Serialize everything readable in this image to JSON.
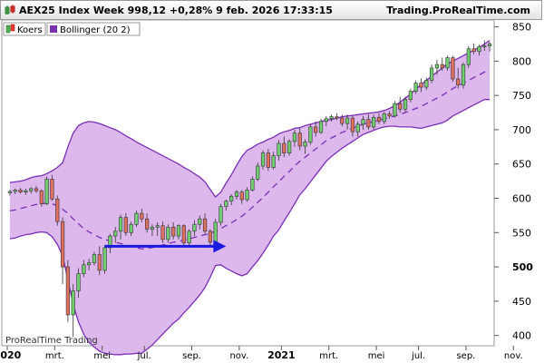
{
  "header": {
    "title": "AEX25 Index Week 998,12 +0,28% 9 feb. 2026 17:33:15",
    "brand": "Trading.ProRealTime.com"
  },
  "watermark": "ProRealTime Trading",
  "chart_data": {
    "type": "candlestick",
    "legend": [
      {
        "name": "Koers",
        "icon": "candlestick-icon"
      },
      {
        "name": "Bollinger (20 2)",
        "color": "#7b2fb3"
      }
    ],
    "legend_placement": "top-left",
    "grid": false,
    "ylim": [
      385,
      860
    ],
    "y_ticks": [
      400,
      450,
      500,
      550,
      600,
      650,
      700,
      750,
      800,
      850
    ],
    "y_highlight": 500,
    "x_ticks": [
      {
        "label": "2020",
        "bold": true,
        "week": 0
      },
      {
        "label": "mrt.",
        "bold": false,
        "week": 9
      },
      {
        "label": "mei",
        "bold": false,
        "week": 18
      },
      {
        "label": "jul.",
        "bold": false,
        "week": 26
      },
      {
        "label": "sep.",
        "bold": false,
        "week": 35
      },
      {
        "label": "nov.",
        "bold": false,
        "week": 44
      },
      {
        "label": "2021",
        "bold": true,
        "week": 52
      },
      {
        "label": "mrt.",
        "bold": false,
        "week": 61
      },
      {
        "label": "mei",
        "bold": false,
        "week": 70
      },
      {
        "label": "jul.",
        "bold": false,
        "week": 78
      },
      {
        "label": "sep.",
        "bold": false,
        "week": 87
      },
      {
        "label": "nov.",
        "bold": false,
        "week": 96
      }
    ],
    "colors": {
      "up": "#6fcf6f",
      "down": "#e07060",
      "band_fill": "#dcb8ec",
      "band_line": "#7b2fb3",
      "arrow": "#1a1adf"
    },
    "candles": [
      [
        608,
        612,
        604,
        610
      ],
      [
        610,
        614,
        606,
        612
      ],
      [
        612,
        615,
        607,
        609
      ],
      [
        609,
        614,
        605,
        611
      ],
      [
        611,
        616,
        607,
        614
      ],
      [
        614,
        618,
        608,
        611
      ],
      [
        611,
        613,
        588,
        592
      ],
      [
        592,
        632,
        590,
        628
      ],
      [
        628,
        634,
        596,
        599
      ],
      [
        599,
        604,
        560,
        566
      ],
      [
        566,
        572,
        475,
        500
      ],
      [
        500,
        510,
        420,
        430
      ],
      [
        430,
        475,
        398,
        465
      ],
      [
        465,
        498,
        455,
        490
      ],
      [
        490,
        510,
        485,
        503
      ],
      [
        503,
        512,
        495,
        506
      ],
      [
        506,
        522,
        502,
        518
      ],
      [
        518,
        530,
        488,
        495
      ],
      [
        495,
        532,
        490,
        528
      ],
      [
        528,
        548,
        520,
        545
      ],
      [
        545,
        558,
        535,
        552
      ],
      [
        552,
        576,
        540,
        572
      ],
      [
        572,
        578,
        545,
        550
      ],
      [
        550,
        566,
        545,
        562
      ],
      [
        562,
        582,
        558,
        578
      ],
      [
        578,
        585,
        565,
        570
      ],
      [
        570,
        578,
        550,
        555
      ],
      [
        555,
        562,
        545,
        558
      ],
      [
        558,
        565,
        545,
        560
      ],
      [
        560,
        566,
        535,
        540
      ],
      [
        540,
        562,
        535,
        558
      ],
      [
        558,
        565,
        540,
        545
      ],
      [
        545,
        562,
        540,
        560
      ],
      [
        560,
        562,
        530,
        535
      ],
      [
        535,
        555,
        530,
        552
      ],
      [
        552,
        568,
        545,
        562
      ],
      [
        562,
        575,
        555,
        570
      ],
      [
        570,
        578,
        548,
        552
      ],
      [
        552,
        555,
        528,
        536
      ],
      [
        536,
        570,
        532,
        565
      ],
      [
        565,
        592,
        560,
        588
      ],
      [
        588,
        598,
        582,
        596
      ],
      [
        596,
        606,
        590,
        603
      ],
      [
        603,
        612,
        598,
        609
      ],
      [
        609,
        612,
        592,
        598
      ],
      [
        598,
        616,
        595,
        612
      ],
      [
        612,
        632,
        610,
        628
      ],
      [
        628,
        652,
        625,
        647
      ],
      [
        647,
        670,
        642,
        666
      ],
      [
        666,
        672,
        640,
        645
      ],
      [
        645,
        668,
        642,
        662
      ],
      [
        662,
        685,
        655,
        680
      ],
      [
        680,
        690,
        660,
        666
      ],
      [
        666,
        686,
        662,
        683
      ],
      [
        683,
        700,
        675,
        695
      ],
      [
        695,
        702,
        670,
        676
      ],
      [
        676,
        686,
        665,
        682
      ],
      [
        682,
        708,
        678,
        704
      ],
      [
        704,
        712,
        690,
        696
      ],
      [
        696,
        716,
        694,
        712
      ],
      [
        712,
        720,
        705,
        716
      ],
      [
        716,
        722,
        712,
        719
      ],
      [
        719,
        724,
        714,
        717
      ],
      [
        717,
        722,
        705,
        709
      ],
      [
        709,
        722,
        700,
        717
      ],
      [
        717,
        720,
        690,
        697
      ],
      [
        697,
        712,
        690,
        708
      ],
      [
        708,
        720,
        700,
        715
      ],
      [
        715,
        722,
        700,
        704
      ],
      [
        704,
        722,
        700,
        718
      ],
      [
        718,
        724,
        708,
        712
      ],
      [
        712,
        726,
        708,
        723
      ],
      [
        723,
        727,
        716,
        720
      ],
      [
        720,
        742,
        718,
        738
      ],
      [
        738,
        748,
        725,
        730
      ],
      [
        730,
        748,
        726,
        744
      ],
      [
        744,
        760,
        740,
        756
      ],
      [
        756,
        772,
        752,
        768
      ],
      [
        768,
        775,
        755,
        762
      ],
      [
        762,
        776,
        758,
        772
      ],
      [
        772,
        795,
        768,
        790
      ],
      [
        790,
        802,
        780,
        795
      ],
      [
        795,
        805,
        786,
        790
      ],
      [
        790,
        808,
        786,
        805
      ],
      [
        805,
        808,
        770,
        774
      ],
      [
        774,
        790,
        760,
        765
      ],
      [
        765,
        798,
        760,
        795
      ],
      [
        795,
        822,
        790,
        818
      ],
      [
        818,
        826,
        810,
        814
      ],
      [
        814,
        824,
        808,
        821
      ],
      [
        821,
        830,
        815,
        822
      ],
      [
        822,
        828,
        814,
        825
      ]
    ],
    "band_upper": [
      623,
      624,
      625,
      627,
      630,
      632,
      633,
      636,
      640,
      645,
      652,
      675,
      695,
      706,
      710,
      712,
      711,
      709,
      706,
      703,
      700,
      696,
      691,
      687,
      682,
      678,
      674,
      670,
      666,
      662,
      658,
      654,
      650,
      645,
      641,
      636,
      631,
      624,
      613,
      602,
      609,
      622,
      634,
      648,
      661,
      670,
      674,
      679,
      682,
      686,
      689,
      694,
      697,
      699,
      702,
      703,
      706,
      708,
      710,
      712,
      714,
      715,
      717,
      719,
      720,
      721,
      722,
      723,
      724,
      725,
      726,
      728,
      731,
      735,
      740,
      746,
      752,
      759,
      766,
      772,
      778,
      784,
      790,
      796,
      800,
      804,
      808,
      812,
      816,
      820,
      825,
      830
    ],
    "band_mid": [
      582,
      583,
      585,
      587,
      589,
      591,
      592,
      593,
      592,
      589,
      584,
      578,
      570,
      563,
      556,
      551,
      547,
      543,
      540,
      538,
      536,
      534,
      532,
      530,
      528,
      526,
      527,
      528,
      530,
      532,
      534,
      536,
      537,
      539,
      541,
      543,
      545,
      547,
      549,
      552,
      556,
      560,
      564,
      569,
      574,
      580,
      587,
      594,
      601,
      609,
      617,
      624,
      632,
      639,
      647,
      654,
      660,
      666,
      672,
      678,
      684,
      688,
      692,
      696,
      699,
      702,
      705,
      708,
      710,
      712,
      714,
      716,
      718,
      720,
      722,
      725,
      728,
      731,
      734,
      738,
      742,
      746,
      750,
      755,
      760,
      764,
      768,
      772,
      776,
      780,
      784,
      787
    ],
    "band_lower": [
      541,
      542,
      545,
      547,
      548,
      550,
      551,
      550,
      544,
      533,
      516,
      481,
      445,
      420,
      402,
      390,
      383,
      377,
      374,
      373,
      372,
      372,
      373,
      373,
      374,
      374,
      380,
      386,
      394,
      402,
      410,
      418,
      424,
      433,
      441,
      450,
      459,
      470,
      485,
      502,
      503,
      498,
      494,
      490,
      487,
      490,
      500,
      509,
      520,
      532,
      545,
      554,
      567,
      579,
      592,
      605,
      614,
      624,
      634,
      644,
      654,
      661,
      667,
      673,
      678,
      683,
      688,
      693,
      696,
      699,
      702,
      704,
      705,
      705,
      704,
      704,
      704,
      703,
      702,
      704,
      706,
      708,
      710,
      714,
      720,
      724,
      728,
      732,
      736,
      740,
      744,
      744
    ],
    "arrow": {
      "from": {
        "week": 18,
        "value": 530
      },
      "to": {
        "week": 41,
        "value": 530
      }
    }
  }
}
